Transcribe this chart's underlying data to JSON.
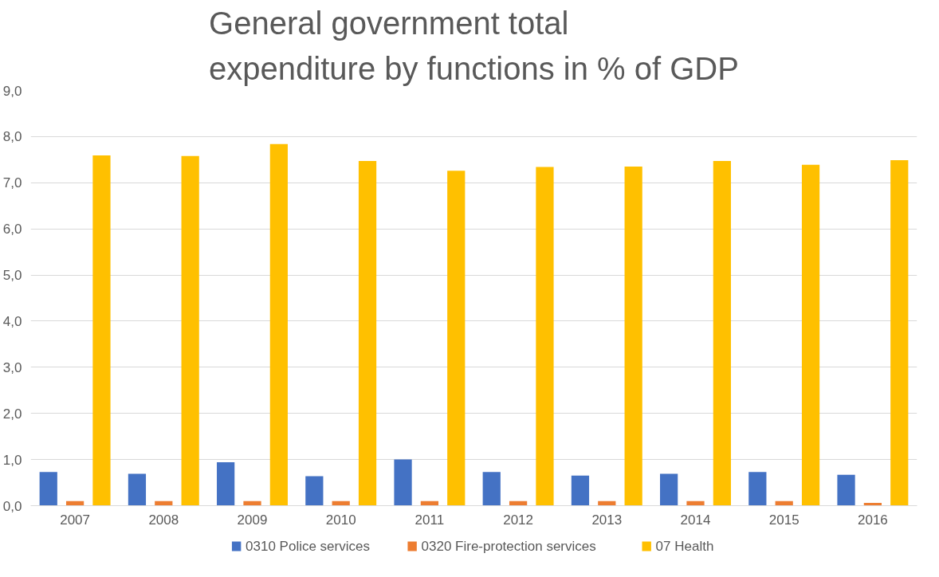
{
  "chart_data": {
    "type": "bar",
    "title": "General government total expenditure by functions in % of GDP",
    "categories": [
      "2007",
      "2008",
      "2009",
      "2010",
      "2011",
      "2012",
      "2013",
      "2014",
      "2015",
      "2016"
    ],
    "series": [
      {
        "name": "0310 Police services",
        "color": "#4472c4",
        "values": [
          0.73,
          0.69,
          0.94,
          0.64,
          1.0,
          0.73,
          0.65,
          0.69,
          0.73,
          0.67
        ]
      },
      {
        "name": "0320 Fire-protection services",
        "color": "#ed7d31",
        "values": [
          0.1,
          0.1,
          0.1,
          0.1,
          0.1,
          0.1,
          0.1,
          0.1,
          0.1,
          0.06
        ]
      },
      {
        "name": "07 Health",
        "color": "#ffc000",
        "values": [
          7.59,
          7.58,
          7.84,
          7.47,
          7.26,
          7.34,
          7.35,
          7.47,
          7.39,
          7.49
        ]
      }
    ],
    "ylim": [
      0,
      9
    ],
    "yticks": [
      {
        "value": 0,
        "label": "0,0"
      },
      {
        "value": 1,
        "label": "1,0"
      },
      {
        "value": 2,
        "label": "2,0"
      },
      {
        "value": 3,
        "label": "3,0"
      },
      {
        "value": 4,
        "label": "4,0"
      },
      {
        "value": 5,
        "label": "5,0"
      },
      {
        "value": 6,
        "label": "6,0"
      },
      {
        "value": 7,
        "label": "7,0"
      },
      {
        "value": 8,
        "label": "8,0"
      },
      {
        "value": 9,
        "label": "9,0"
      }
    ],
    "grid": "y",
    "legend": "bottom"
  }
}
